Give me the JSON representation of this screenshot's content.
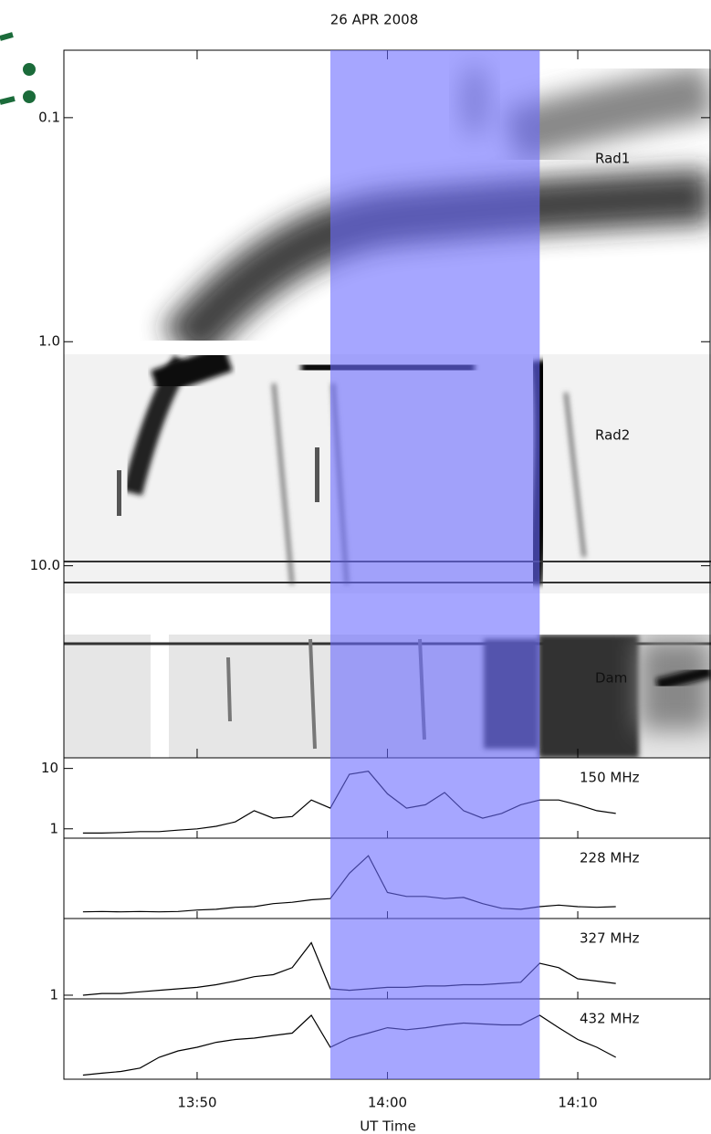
{
  "chart_data": [
    {
      "type": "spectrogram",
      "title": "26 APR 2008",
      "ylim": [
        0.05,
        72
      ],
      "log": true,
      "inverted": true,
      "yticks": [
        {
          "value": 0.1,
          "label": "0.1"
        },
        {
          "value": 1,
          "label": "1.0"
        },
        {
          "value": 10,
          "label": "10.0"
        }
      ],
      "panels": [
        {
          "name": "Rad1",
          "range": [
            0.05,
            1.0
          ]
        },
        {
          "name": "Rad2",
          "range": [
            1.15,
            13.2
          ]
        },
        {
          "name": "Dam",
          "range": [
            20,
            72
          ]
        }
      ]
    },
    {
      "type": "line",
      "xlabel": "UT Time",
      "xlim": [
        "13:43",
        "14:17"
      ],
      "xticks": [
        "13:50",
        "14:00",
        "14:10"
      ],
      "highlight": [
        "13:57",
        "14:08"
      ],
      "highlight_color": "#6b6bff",
      "color": "#000000",
      "log": true,
      "x": [
        "13:44",
        "13:45",
        "13:46",
        "13:47",
        "13:48",
        "13:49",
        "13:50",
        "13:51",
        "13:52",
        "13:53",
        "13:54",
        "13:55",
        "13:56",
        "13:57",
        "13:58",
        "13:59",
        "14:00",
        "14:01",
        "14:02",
        "14:03",
        "14:04",
        "14:05",
        "14:06",
        "14:07",
        "14:08",
        "14:09",
        "14:10",
        "14:11",
        "14:12"
      ],
      "series": [
        {
          "name": "150 MHz",
          "ylim": [
            0.7,
            15
          ],
          "yticks": [
            1,
            10
          ],
          "values": [
            0.85,
            0.85,
            0.87,
            0.9,
            0.9,
            0.95,
            1.0,
            1.1,
            1.3,
            2.0,
            1.5,
            1.6,
            3.0,
            2.2,
            8.0,
            9.0,
            3.8,
            2.2,
            2.5,
            4.0,
            2.0,
            1.5,
            1.8,
            2.5,
            3.0,
            3.0,
            2.5,
            2.0,
            1.8
          ]
        },
        {
          "name": "228 MHz",
          "ylim": [
            0.5,
            12
          ],
          "yticks": [],
          "values": [
            0.65,
            0.66,
            0.65,
            0.66,
            0.65,
            0.66,
            0.7,
            0.72,
            0.78,
            0.8,
            0.9,
            0.95,
            1.05,
            1.1,
            3.0,
            6.0,
            1.4,
            1.2,
            1.2,
            1.1,
            1.15,
            0.9,
            0.75,
            0.72,
            0.8,
            0.85,
            0.8,
            0.78,
            0.8
          ]
        },
        {
          "name": "327 MHz",
          "ylim": [
            0.9,
            9
          ],
          "yticks": [
            1
          ],
          "values": [
            1.0,
            1.05,
            1.05,
            1.1,
            1.15,
            1.2,
            1.25,
            1.35,
            1.5,
            1.7,
            1.8,
            2.2,
            4.5,
            1.2,
            1.15,
            1.2,
            1.25,
            1.25,
            1.3,
            1.3,
            1.35,
            1.35,
            1.4,
            1.45,
            2.5,
            2.2,
            1.6,
            1.5,
            1.4
          ]
        },
        {
          "name": "432 MHz",
          "ylim": [
            0.8,
            8
          ],
          "yticks": [],
          "values": [
            0.9,
            0.95,
            1.0,
            1.1,
            1.5,
            1.8,
            2.0,
            2.3,
            2.5,
            2.6,
            2.8,
            3.0,
            5.0,
            2.0,
            2.6,
            3.0,
            3.5,
            3.3,
            3.5,
            3.8,
            4.0,
            3.9,
            3.8,
            3.8,
            5.0,
            3.5,
            2.5,
            2.0,
            1.5
          ]
        }
      ]
    }
  ]
}
